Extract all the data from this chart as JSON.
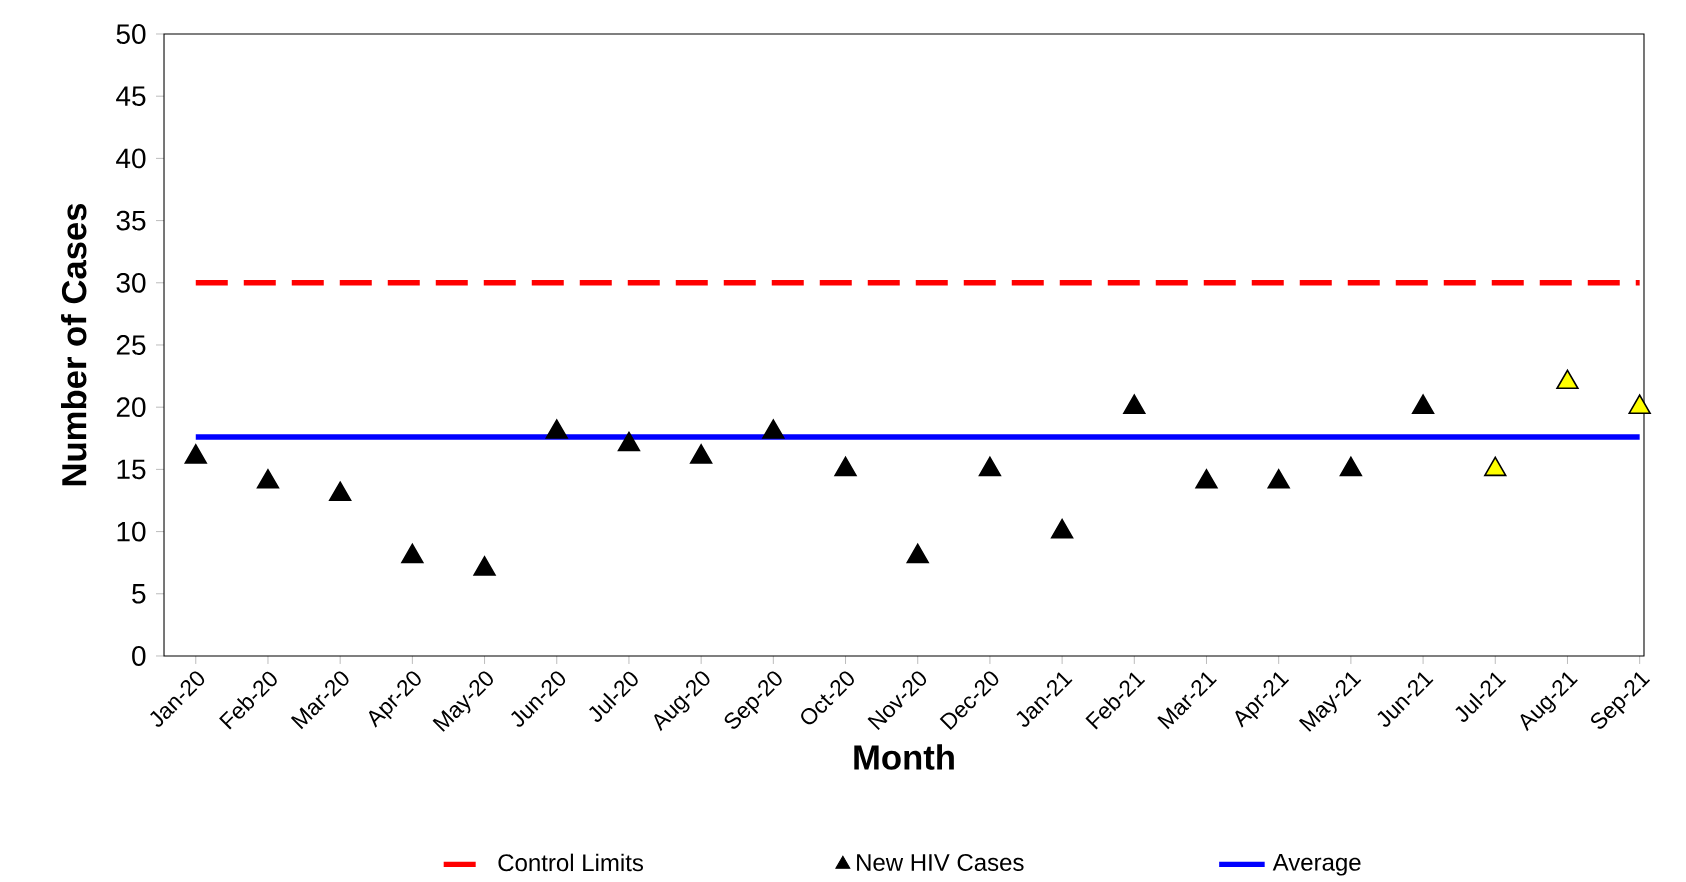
{
  "chart_data": {
    "type": "scatter",
    "xlabel": "Month",
    "ylabel": "Number of Cases",
    "categories": [
      "Jan-20",
      "Feb-20",
      "Mar-20",
      "Apr-20",
      "May-20",
      "Jun-20",
      "Jul-20",
      "Aug-20",
      "Sep-20",
      "Oct-20",
      "Nov-20",
      "Dec-20",
      "Jan-21",
      "Feb-21",
      "Mar-21",
      "Apr-21",
      "May-21",
      "Jun-21",
      "Jul-21",
      "Aug-21",
      "Sep-21"
    ],
    "series": [
      {
        "name": "Control Limits",
        "type": "line",
        "line_style": "dashed",
        "marker": "none",
        "color": "#ff0000",
        "values": [
          30,
          30,
          30,
          30,
          30,
          30,
          30,
          30,
          30,
          30,
          30,
          30,
          30,
          30,
          30,
          30,
          30,
          30,
          30,
          30,
          30
        ]
      },
      {
        "name": "New HIV Cases",
        "marker": "triangle",
        "color": "#000000",
        "colors": [
          "#000000",
          "#000000",
          "#000000",
          "#000000",
          "#000000",
          "#000000",
          "#000000",
          "#000000",
          "#000000",
          "#000000",
          "#000000",
          "#000000",
          "#000000",
          "#000000",
          "#000000",
          "#000000",
          "#000000",
          "#000000",
          "#ffff00",
          "#ffff00",
          "#ffff00"
        ],
        "values": [
          16,
          14,
          13,
          8,
          7,
          18,
          17,
          16,
          18,
          15,
          8,
          15,
          10,
          20,
          14,
          14,
          15,
          20,
          15,
          22,
          20
        ]
      },
      {
        "name": "Average",
        "type": "line",
        "line_style": "solid",
        "marker": "none",
        "color": "#0000ff",
        "values": [
          17.6,
          17.6,
          17.6,
          17.6,
          17.6,
          17.6,
          17.6,
          17.6,
          17.6,
          17.6,
          17.6,
          17.6,
          17.6,
          17.6,
          17.6,
          17.6,
          17.6,
          17.6,
          17.6,
          17.6,
          17.6
        ]
      }
    ],
    "ylim": [
      0,
      50
    ],
    "yticks": [
      0,
      5,
      10,
      15,
      20,
      25,
      30,
      35,
      40,
      45,
      50
    ],
    "grid": false,
    "legend": "bottom"
  }
}
